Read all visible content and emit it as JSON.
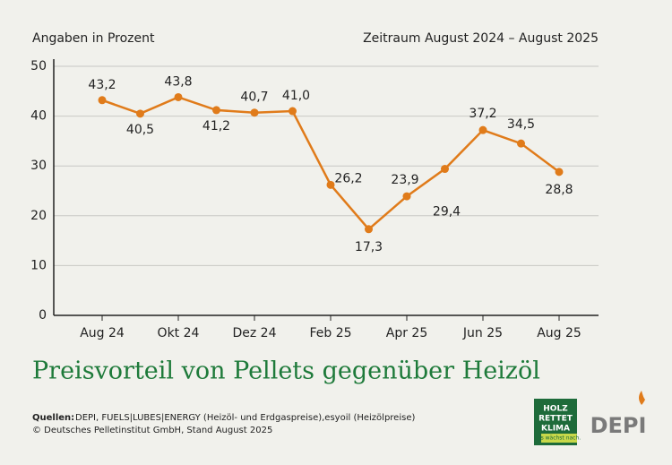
{
  "chart_data": {
    "type": "line",
    "unit_note": "Angaben in Prozent",
    "period": "Zeitraum August 2024 – August 2025",
    "title": "Preisvorteil von Pellets gegenüber Heizöl",
    "categories": [
      "Aug 24",
      null,
      "Okt 24",
      null,
      "Dez 24",
      null,
      "Feb 25",
      null,
      "Apr 25",
      null,
      "Jun 25",
      null,
      "Aug 25"
    ],
    "series": [
      {
        "name": "Preisvorteil",
        "color": "#e07b1a",
        "values": [
          43.2,
          40.5,
          43.8,
          41.2,
          40.7,
          41.0,
          26.2,
          17.3,
          23.9,
          29.4,
          37.2,
          34.5,
          28.8
        ],
        "value_labels": [
          "43,2",
          "40,5",
          "43,8",
          "41,2",
          "40,7",
          "41,0",
          "26,2",
          "17,3",
          "23,9",
          "29,4",
          "37,2",
          "34,5",
          "28,8"
        ]
      }
    ],
    "ylim": [
      0,
      50
    ],
    "yticks": [
      0,
      10,
      20,
      30,
      40,
      50
    ],
    "grid": true,
    "sources_label": "Quellen:",
    "sources": "DEPI, FUELS|LUBES|ENERGY (Heizöl- und Erdgaspreise),esyoil (Heizölpreise)",
    "copyright": "© Deutsches Pelletinstitut GmbH, Stand August 2025",
    "logo_lines": [
      "HOLZ",
      "RETTET",
      "KLIMA"
    ],
    "logo_tagline": "Es wächst nach.",
    "brand": "DEPI"
  }
}
